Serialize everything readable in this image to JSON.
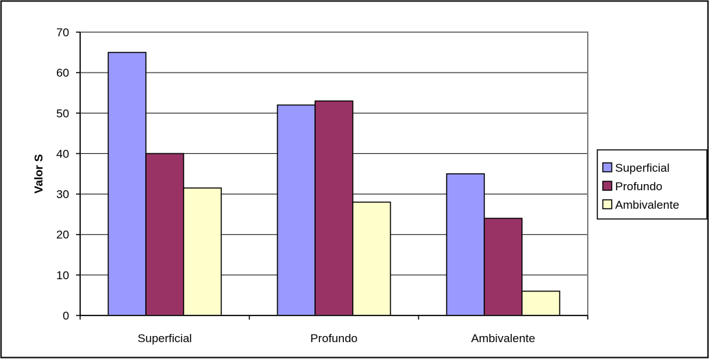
{
  "chart_data": {
    "type": "bar",
    "categories": [
      "Superficial",
      "Profundo",
      "Ambivalente"
    ],
    "series": [
      {
        "name": "Superficial",
        "values": [
          65,
          52,
          35
        ],
        "color": "#9999FF"
      },
      {
        "name": "Profundo",
        "values": [
          40,
          53,
          24
        ],
        "color": "#993366"
      },
      {
        "name": "Ambivalente",
        "values": [
          31.5,
          28,
          6
        ],
        "color": "#FFFFCC"
      }
    ],
    "ylabel": "Valor S",
    "ylim": [
      0,
      70
    ],
    "yticks": [
      "0",
      "10",
      "20",
      "30",
      "40",
      "50",
      "60",
      "70"
    ],
    "grid": true,
    "legend_position": "right",
    "plot_background": "#FFFFFF"
  }
}
